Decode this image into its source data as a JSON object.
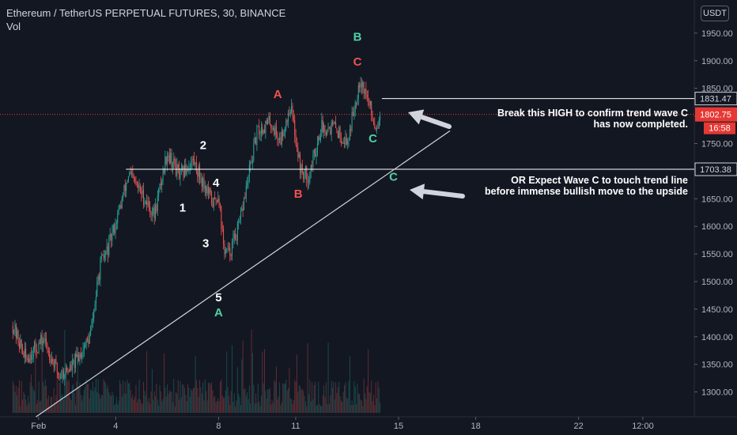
{
  "header": {
    "symbol_line": "Ethereum / TetherUS PERPETUAL FUTURES, 30, BINANCE",
    "indicator": "Vol"
  },
  "currency_button": "USDT",
  "annotations": {
    "break_high_line1": "Break this HIGH to confirm trend wave C",
    "break_high_line2": "has now completed.",
    "expect_line1": "OR Expect Wave C to touch trend line",
    "expect_line2": "before immense bullish move to the upside"
  },
  "colors": {
    "background": "#131722",
    "up_candle": "#26a69a",
    "down_candle": "#ef5350",
    "red_label": "#ef5350",
    "teal_label": "#4fd1a5",
    "price_tag_red": "#e53935",
    "axis_text": "#b2b5be"
  },
  "chart_data": {
    "type": "candlestick",
    "y_axis": {
      "ticks": [
        1300,
        1350,
        1400,
        1450,
        1500,
        1550,
        1600,
        1650,
        1700,
        1750,
        1800,
        1850,
        1900,
        1950
      ],
      "tick_labels": [
        "1300.00",
        "1350.00",
        "1400.00",
        "1450.00",
        "1500.00",
        "1550.00",
        "1600.00",
        "1650.00",
        "1700.00",
        "1750.00",
        "1800.00",
        "1850.00",
        "1900.00",
        "1950.00"
      ],
      "range": [
        1255,
        2010
      ]
    },
    "x_axis": {
      "labels": [
        "Feb",
        "4",
        "8",
        "11",
        "15",
        "18",
        "22",
        "12:00"
      ],
      "day_positions": [
        1,
        4,
        8,
        11,
        15,
        18,
        22,
        24.5
      ],
      "range_days": [
        -0.5,
        26.5
      ]
    },
    "price_path": [
      [
        0,
        1420
      ],
      [
        0.5,
        1360
      ],
      [
        1.2,
        1395
      ],
      [
        1.8,
        1330
      ],
      [
        2.3,
        1345
      ],
      [
        3.0,
        1400
      ],
      [
        3.4,
        1530
      ],
      [
        3.7,
        1560
      ],
      [
        4.2,
        1640
      ],
      [
        4.5,
        1695
      ],
      [
        5.0,
        1660
      ],
      [
        5.5,
        1620
      ],
      [
        6.0,
        1735
      ],
      [
        6.5,
        1690
      ],
      [
        7.0,
        1720
      ],
      [
        7.5,
        1670
      ],
      [
        7.8,
        1640
      ],
      [
        8.0,
        1660
      ],
      [
        8.2,
        1560
      ],
      [
        8.4,
        1550
      ],
      [
        8.8,
        1600
      ],
      [
        9.2,
        1700
      ],
      [
        9.5,
        1770
      ],
      [
        10.0,
        1790
      ],
      [
        10.4,
        1755
      ],
      [
        10.8,
        1820
      ],
      [
        11.2,
        1700
      ],
      [
        11.5,
        1690
      ],
      [
        12.0,
        1780
      ],
      [
        12.5,
        1780
      ],
      [
        13.0,
        1750
      ],
      [
        13.5,
        1870
      ],
      [
        13.8,
        1830
      ],
      [
        14.1,
        1780
      ],
      [
        14.3,
        1802.75
      ]
    ],
    "volume_note": "Vol histogram along bottom, colored by candle direction",
    "horizontal_levels": [
      {
        "value": 1831.47,
        "label": "1831.47"
      },
      {
        "value": 1703.38,
        "label": "1703.38"
      }
    ],
    "last_price": {
      "value": 1802.75,
      "label": "1802.75",
      "countdown": "16:58"
    },
    "trend_line": {
      "from": {
        "day": 0.9,
        "price": 1255
      },
      "to": {
        "day": 17.0,
        "price": 1773
      }
    },
    "wave_labels": [
      {
        "text": "1",
        "day": 6.6,
        "price": 1627,
        "color": "white"
      },
      {
        "text": "2",
        "day": 7.4,
        "price": 1740,
        "color": "white"
      },
      {
        "text": "4",
        "day": 7.9,
        "price": 1672,
        "color": "white"
      },
      {
        "text": "3",
        "day": 7.5,
        "price": 1562,
        "color": "white"
      },
      {
        "text": "5",
        "day": 8.0,
        "price": 1464,
        "color": "white"
      },
      {
        "text": "A",
        "day": 8.0,
        "price": 1437,
        "color": "teal"
      },
      {
        "text": "A",
        "day": 10.3,
        "price": 1832,
        "color": "red"
      },
      {
        "text": "B",
        "day": 11.1,
        "price": 1652,
        "color": "red"
      },
      {
        "text": "B",
        "day": 13.4,
        "price": 1936,
        "color": "teal"
      },
      {
        "text": "C",
        "day": 13.4,
        "price": 1891,
        "color": "red"
      },
      {
        "text": "C",
        "day": 14.0,
        "price": 1752,
        "color": "teal"
      },
      {
        "text": "C",
        "day": 14.8,
        "price": 1683,
        "color": "teal"
      }
    ]
  }
}
